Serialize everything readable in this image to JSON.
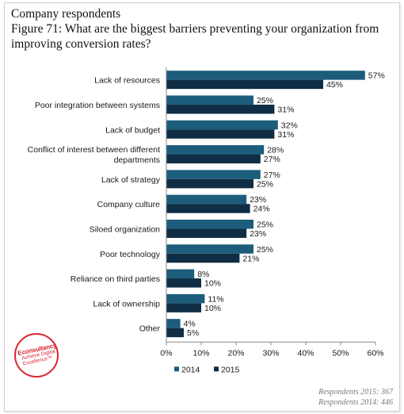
{
  "header": {
    "section": "Company respondents",
    "figure_title_line1": "Figure 71: What are the biggest barriers preventing your organization from",
    "figure_title_line2": "improving conversion rates?"
  },
  "footer": {
    "respondents_2015": "Respondents 2015: 367",
    "respondents_2014": "Respondents 2014: 446"
  },
  "logo": {
    "brand": "Econsultancy",
    "tagline": "Achieve Digital Excellence™"
  },
  "colors": {
    "series_2014": "#1d5d7c",
    "series_2015": "#0f2d44",
    "grid": "#d0d0d0",
    "logo": "#d8262f"
  },
  "chart_data": {
    "type": "bar",
    "orientation": "horizontal",
    "title": "Figure 71: What are the biggest barriers preventing your organization from improving conversion rates?",
    "categories": [
      [
        "Lack of resources"
      ],
      [
        "Poor integration between systems"
      ],
      [
        "Lack of budget"
      ],
      [
        "Conflict of interest between different",
        "departments"
      ],
      [
        "Lack of strategy"
      ],
      [
        "Company culture"
      ],
      [
        "Siloed organization"
      ],
      [
        "Poor technology"
      ],
      [
        "Reliance on third parties"
      ],
      [
        "Lack of ownership"
      ],
      [
        "Other"
      ]
    ],
    "series": [
      {
        "name": "2014",
        "values": [
          57,
          25,
          32,
          28,
          27,
          23,
          25,
          25,
          8,
          11,
          4
        ]
      },
      {
        "name": "2015",
        "values": [
          45,
          31,
          31,
          27,
          25,
          24,
          23,
          21,
          10,
          10,
          5
        ]
      }
    ],
    "value_suffix": "%",
    "xlim": [
      0,
      60
    ],
    "x_ticks": [
      "0%",
      "10%",
      "20%",
      "30%",
      "40%",
      "50%",
      "60%"
    ],
    "grid": false,
    "legend": "bottom"
  }
}
